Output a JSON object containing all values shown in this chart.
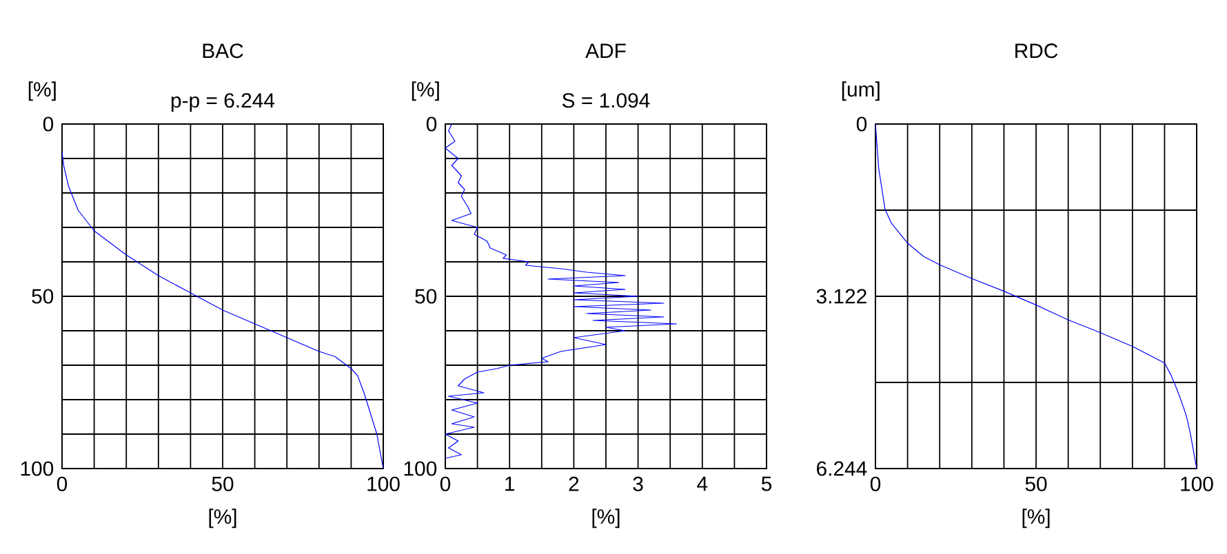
{
  "chart_data": [
    {
      "type": "line",
      "title": "BAC",
      "subtitle": "p-p = 6.244",
      "ylabel": "[%]",
      "xlabel": "[%]",
      "color": "#0000ff",
      "grid": true,
      "marker": "none",
      "line_style": "solid",
      "x": [
        0,
        0.5,
        2,
        5,
        10,
        20,
        30,
        40,
        50,
        60,
        70,
        80,
        85,
        90,
        92,
        94,
        96,
        98,
        99,
        100
      ],
      "values": [
        8,
        12,
        18,
        25,
        31,
        38,
        44,
        49,
        54,
        58,
        62,
        66,
        67.5,
        71,
        73,
        78,
        84,
        90,
        95,
        100
      ],
      "xlim": [
        0,
        100
      ],
      "ylim": [
        100,
        0
      ],
      "xticks": [
        0,
        {
          "value": 10,
          "label": null
        },
        {
          "value": 20,
          "label": null
        },
        {
          "value": 30,
          "label": null
        },
        {
          "value": 40,
          "label": null
        },
        50,
        {
          "value": 60,
          "label": null
        },
        {
          "value": 70,
          "label": null
        },
        {
          "value": 80,
          "label": null
        },
        {
          "value": 90,
          "label": null
        },
        100
      ],
      "yticks": [
        0,
        {
          "value": 10,
          "label": null
        },
        {
          "value": 20,
          "label": null
        },
        {
          "value": 30,
          "label": null
        },
        {
          "value": 40,
          "label": null
        },
        50,
        {
          "value": 60,
          "label": null
        },
        {
          "value": 70,
          "label": null
        },
        {
          "value": 80,
          "label": null
        },
        {
          "value": 90,
          "label": null
        },
        100
      ]
    },
    {
      "type": "line",
      "title": "ADF",
      "subtitle": "S = 1.094",
      "ylabel": "[%]",
      "xlabel": "[%]",
      "color": "#0000ff",
      "grid": true,
      "marker": "none",
      "line_style": "solid",
      "x": [
        0.1,
        0.05,
        0.15,
        0.0,
        0.2,
        0.1,
        0.25,
        0.2,
        0.3,
        0.25,
        0.35,
        0.4,
        0.1,
        0.5,
        0.45,
        0.65,
        0.7,
        0.95,
        0.9,
        1.3,
        1.25,
        1.8,
        2.2,
        2.8,
        1.6,
        2.7,
        2.0,
        2.8,
        2.0,
        3.0,
        2.0,
        3.4,
        2.0,
        3.2,
        2.2,
        3.4,
        2.3,
        3.6,
        2.5,
        2.8,
        2.0,
        2.5,
        1.8,
        1.5,
        1.6,
        1.0,
        0.8,
        0.5,
        0.3,
        0.2,
        0.6,
        0.05,
        0.5,
        0.1,
        0.45,
        0.1,
        0.45,
        0.0,
        0.2,
        0.05,
        0.25,
        0.0
      ],
      "values": [
        0,
        2,
        5,
        7,
        10,
        12,
        15,
        17,
        19,
        21,
        24,
        26,
        28,
        30,
        32,
        34,
        36,
        38,
        39,
        40,
        41,
        42,
        43,
        44,
        45,
        46,
        47,
        48,
        49,
        50,
        51,
        52,
        53,
        54,
        55,
        56,
        57,
        58,
        59,
        60,
        62,
        64,
        66,
        68,
        69,
        70,
        71,
        72,
        74,
        76,
        78,
        79,
        81,
        83,
        85,
        87,
        88,
        90,
        92,
        94,
        96,
        97
      ],
      "xlim": [
        0,
        5
      ],
      "ylim": [
        100,
        0
      ],
      "xticks": [
        0,
        {
          "value": 0.5,
          "label": null
        },
        1,
        {
          "value": 1.5,
          "label": null
        },
        2,
        {
          "value": 2.5,
          "label": null
        },
        3,
        {
          "value": 3.5,
          "label": null
        },
        4,
        {
          "value": 4.5,
          "label": null
        },
        5
      ],
      "yticks": [
        0,
        {
          "value": 10,
          "label": null
        },
        {
          "value": 20,
          "label": null
        },
        {
          "value": 30,
          "label": null
        },
        {
          "value": 40,
          "label": null
        },
        50,
        {
          "value": 60,
          "label": null
        },
        {
          "value": 70,
          "label": null
        },
        {
          "value": 80,
          "label": null
        },
        {
          "value": 90,
          "label": null
        },
        100
      ]
    },
    {
      "type": "line",
      "title": "RDC",
      "ylabel": "[um]",
      "xlabel": "[%]",
      "color": "#0000ff",
      "grid": true,
      "marker": "none",
      "line_style": "solid",
      "x": [
        0,
        1,
        3,
        5,
        10,
        15,
        20,
        30,
        40,
        50,
        60,
        70,
        80,
        90,
        92,
        94,
        96,
        97,
        98,
        100
      ],
      "values": [
        0,
        0.8,
        1.55,
        1.8,
        2.16,
        2.4,
        2.55,
        2.8,
        3.03,
        3.28,
        3.55,
        3.78,
        4.03,
        4.33,
        4.55,
        4.83,
        5.15,
        5.34,
        5.6,
        6.244
      ],
      "xlim": [
        0,
        100
      ],
      "ylim": [
        6.244,
        0
      ],
      "xticks": [
        0,
        {
          "value": 10,
          "label": null
        },
        {
          "value": 20,
          "label": null
        },
        {
          "value": 30,
          "label": null
        },
        {
          "value": 40,
          "label": null
        },
        50,
        {
          "value": 60,
          "label": null
        },
        {
          "value": 70,
          "label": null
        },
        {
          "value": 80,
          "label": null
        },
        {
          "value": 90,
          "label": null
        },
        100
      ],
      "yticks": [
        0,
        {
          "value": 1.561,
          "label": null
        },
        3.122,
        {
          "value": 4.683,
          "label": null
        },
        6.244
      ]
    }
  ]
}
